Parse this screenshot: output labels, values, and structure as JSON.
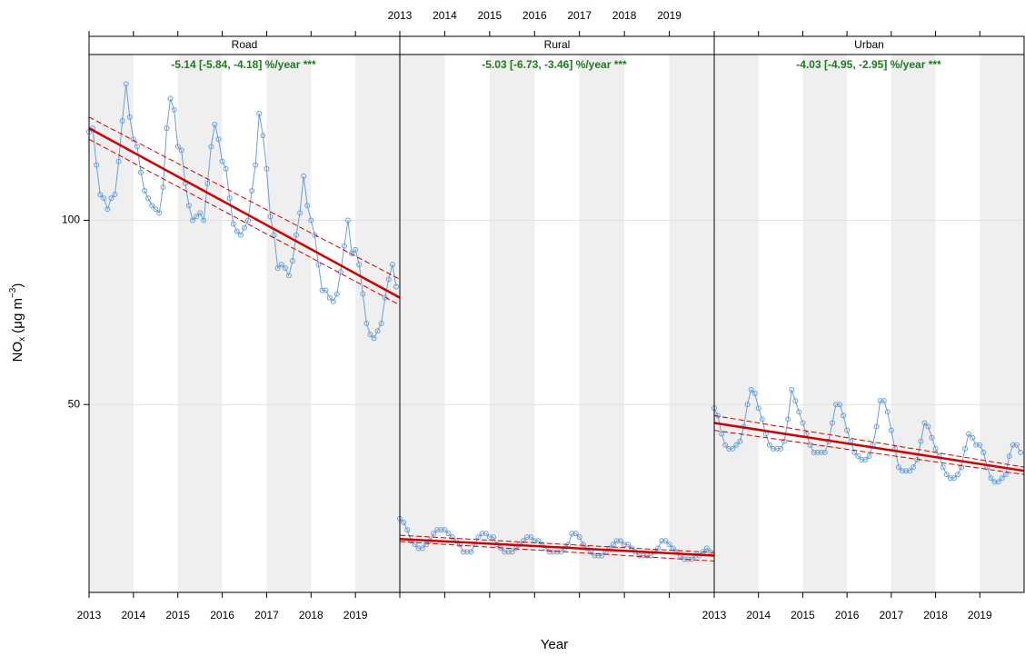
{
  "chart_data": {
    "type": "line",
    "xlabel": "Year",
    "ylabel": [
      "NO",
      "x",
      " (μg m",
      "−3",
      ")"
    ],
    "xlim": [
      2013,
      2020
    ],
    "xticks": [
      2013,
      2014,
      2015,
      2016,
      2017,
      2018,
      2019
    ],
    "ylim": [
      -1,
      145
    ],
    "yticks": [
      50,
      100
    ],
    "grid": true,
    "x": [
      2013,
      2013.083,
      2013.167,
      2013.25,
      2013.333,
      2013.417,
      2013.5,
      2013.583,
      2013.667,
      2013.75,
      2013.833,
      2013.917,
      2014,
      2014.083,
      2014.167,
      2014.25,
      2014.333,
      2014.417,
      2014.5,
      2014.583,
      2014.667,
      2014.75,
      2014.833,
      2014.917,
      2015,
      2015.083,
      2015.167,
      2015.25,
      2015.333,
      2015.417,
      2015.5,
      2015.583,
      2015.667,
      2015.75,
      2015.833,
      2015.917,
      2016,
      2016.083,
      2016.167,
      2016.25,
      2016.333,
      2016.417,
      2016.5,
      2016.583,
      2016.667,
      2016.75,
      2016.833,
      2016.917,
      2017,
      2017.083,
      2017.167,
      2017.25,
      2017.333,
      2017.417,
      2017.5,
      2017.583,
      2017.667,
      2017.75,
      2017.833,
      2017.917,
      2018,
      2018.083,
      2018.167,
      2018.25,
      2018.333,
      2018.417,
      2018.5,
      2018.583,
      2018.667,
      2018.75,
      2018.833,
      2018.917,
      2019,
      2019.083,
      2019.167,
      2019.25,
      2019.333,
      2019.417,
      2019.5,
      2019.583,
      2019.667,
      2019.75,
      2019.833,
      2019.917
    ],
    "line_color": "#6a9fd8",
    "trend_color": "#d00000",
    "annotation_color": "#1f7a1f",
    "panels": [
      {
        "name": "Road",
        "xtick_side": "bottom",
        "annotation": "-5.14 [-5.84, -4.18] %/year ***",
        "values": [
          124,
          125,
          115,
          107,
          106,
          103,
          106,
          107,
          116,
          127,
          137,
          128,
          122,
          120,
          113,
          108,
          106,
          104,
          103,
          102,
          109,
          125,
          133,
          130,
          120,
          119,
          110,
          104,
          100,
          101,
          102,
          100,
          110,
          120,
          126,
          122,
          116,
          114,
          106,
          99,
          97,
          96,
          98,
          100,
          108,
          115,
          129,
          123,
          114,
          101,
          96,
          87,
          88,
          87,
          85,
          89,
          96,
          102,
          112,
          104,
          100,
          96,
          88,
          81,
          81,
          79,
          78,
          80,
          86,
          93,
          100,
          91,
          92,
          88,
          80,
          72,
          69,
          68,
          70,
          72,
          79,
          84,
          88,
          82
        ],
        "trend": {
          "x": [
            2013,
            2020
          ],
          "values": [
            125,
            79
          ],
          "lower": [
            122,
            77
          ],
          "upper": [
            128,
            84
          ]
        }
      },
      {
        "name": "Rural",
        "xtick_side": "top",
        "annotation": "-5.03 [-6.73, -3.46] %/year ***",
        "values": [
          19,
          18,
          16,
          13,
          12,
          11,
          11,
          12,
          13,
          15,
          16,
          16,
          16,
          15,
          14,
          13,
          12,
          10,
          10,
          10,
          12,
          14,
          15,
          15,
          14,
          14,
          12,
          11,
          10,
          10,
          10,
          11,
          12,
          13,
          14,
          14,
          13,
          13,
          12,
          11,
          10,
          10,
          10,
          10,
          11,
          12,
          15,
          15,
          14,
          12,
          11,
          10,
          9,
          9,
          9,
          10,
          11,
          12,
          13,
          13,
          12,
          12,
          11,
          10,
          9,
          9,
          9,
          9,
          10,
          11,
          13,
          13,
          12,
          11,
          10,
          9,
          8,
          8,
          8,
          9,
          9,
          10,
          11,
          10
        ],
        "trend": {
          "x": [
            2013,
            2020
          ],
          "values": [
            13.5,
            9
          ],
          "lower": [
            12.8,
            7.5
          ],
          "upper": [
            14.5,
            9.8
          ]
        }
      },
      {
        "name": "Urban",
        "xtick_side": "bottom",
        "annotation": "-4.03 [-4.95, -2.95] %/year ***",
        "values": [
          49,
          47,
          42,
          39,
          38,
          38,
          39,
          40,
          44,
          50,
          54,
          53,
          49,
          46,
          42,
          39,
          38,
          38,
          38,
          40,
          46,
          54,
          51,
          48,
          45,
          42,
          39,
          37,
          37,
          37,
          37,
          40,
          45,
          50,
          50,
          47,
          43,
          40,
          37,
          36,
          35,
          35,
          36,
          39,
          44,
          51,
          51,
          48,
          43,
          38,
          33,
          32,
          32,
          32,
          33,
          35,
          40,
          45,
          44,
          41,
          38,
          36,
          33,
          31,
          30,
          30,
          31,
          33,
          38,
          42,
          41,
          39,
          39,
          37,
          33,
          30,
          29,
          29,
          30,
          31,
          36,
          39,
          39,
          37
        ],
        "trend": {
          "x": [
            2013,
            2020
          ],
          "values": [
            45,
            32
          ],
          "lower": [
            43,
            31
          ],
          "upper": [
            47,
            33
          ]
        }
      }
    ]
  }
}
